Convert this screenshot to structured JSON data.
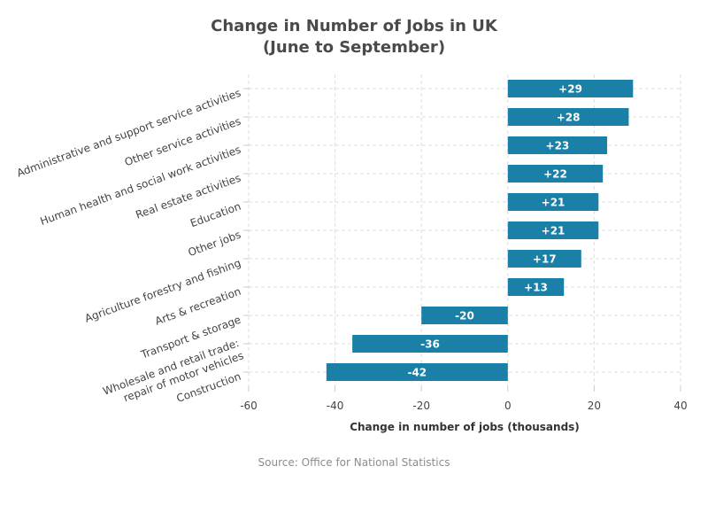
{
  "chart_data": {
    "type": "bar",
    "orientation": "horizontal",
    "title_lines": [
      "Change in Number of Jobs in UK",
      "(June to September)"
    ],
    "categories": [
      [
        "Administrative and support service activities"
      ],
      [
        "Other service activities"
      ],
      [
        "Human health and social work activities"
      ],
      [
        "Real estate activities"
      ],
      [
        "Education"
      ],
      [
        "Other jobs"
      ],
      [
        "Agriculture forestry and fishing"
      ],
      [
        "Arts & recreation"
      ],
      [
        "Transport & storage"
      ],
      [
        "Wholesale and retail trade:",
        "repair of motor vehicles"
      ],
      [
        "Construction"
      ]
    ],
    "values": [
      29,
      28,
      23,
      22,
      21,
      21,
      17,
      13,
      -20,
      -36,
      -42
    ],
    "value_labels": [
      "+29",
      "+28",
      "+23",
      "+22",
      "+21",
      "+21",
      "+17",
      "+13",
      "-20",
      "-36",
      "-42"
    ],
    "xlabel": "Change in number of jobs (thousands)",
    "ylabel": "",
    "xlim": [
      -60,
      40
    ],
    "xticks": [
      -60,
      -40,
      -20,
      0,
      20,
      40
    ],
    "grid": true,
    "bar_color": "#1a80a8",
    "source": "Source: Office for National Statistics"
  }
}
